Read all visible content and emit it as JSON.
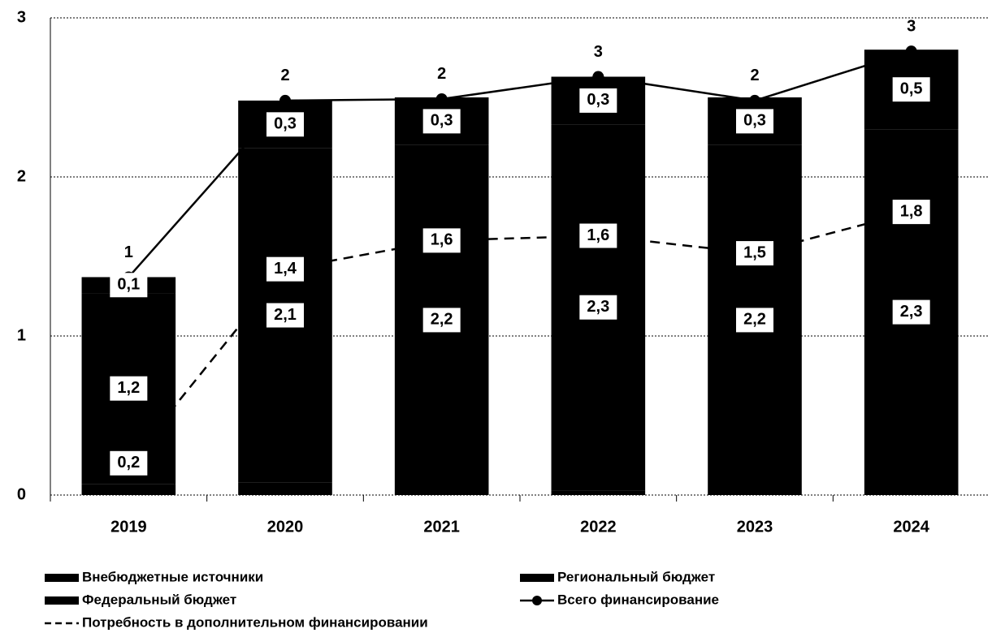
{
  "chart_data": {
    "type": "bar",
    "stacked": true,
    "categories": [
      "2019",
      "2020",
      "2021",
      "2022",
      "2023",
      "2024"
    ],
    "series": [
      {
        "name": "Внебюджетные источники",
        "type": "bar",
        "color": "#000000",
        "values": [
          0.07,
          0.08,
          0,
          0.03,
          0,
          0
        ]
      },
      {
        "name": "Федеральный бюджет",
        "type": "bar",
        "color": "#000000",
        "values": [
          1.2,
          2.1,
          2.2,
          2.3,
          2.2,
          2.3
        ],
        "value_labels": [
          "1,2",
          "2,1",
          "2,2",
          "2,3",
          "2,2",
          "2,3"
        ]
      },
      {
        "name": "Региональный бюджет",
        "type": "bar",
        "color": "#000000",
        "values": [
          0.1,
          0.3,
          0.3,
          0.3,
          0.3,
          0.5
        ],
        "value_labels": [
          "0,1",
          "0,3",
          "0,3",
          "0,3",
          "0,3",
          "0,5"
        ]
      },
      {
        "name": "Всего финансирование",
        "type": "line",
        "color": "#000000",
        "marker": true,
        "values": [
          1.37,
          2.48,
          2.49,
          2.63,
          2.48,
          2.79
        ],
        "value_labels": [
          "1",
          "2",
          "2",
          "3",
          "2",
          "3"
        ]
      },
      {
        "name": "Потребность в дополнительном финансировании",
        "type": "line",
        "dashed": true,
        "color": "#000000",
        "values": [
          0.2,
          1.42,
          1.6,
          1.63,
          1.52,
          1.78
        ],
        "value_labels": [
          "0,2",
          "1,4",
          "1,6",
          "1,6",
          "1,5",
          "1,8"
        ]
      }
    ],
    "ylim": [
      0,
      3
    ],
    "yticks": [
      0,
      1,
      2,
      3
    ],
    "grid": true
  }
}
